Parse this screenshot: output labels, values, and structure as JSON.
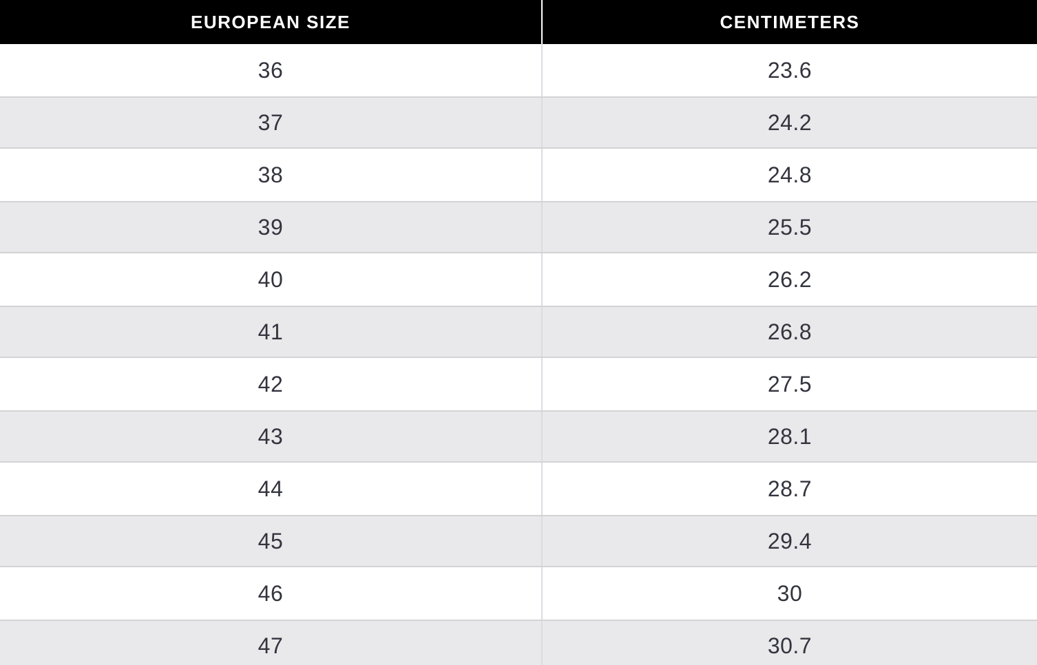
{
  "table": {
    "columns": [
      {
        "label": "EUROPEAN SIZE"
      },
      {
        "label": "CENTIMETERS"
      }
    ],
    "rows": [
      {
        "size": "36",
        "cm": "23.6"
      },
      {
        "size": "37",
        "cm": "24.2"
      },
      {
        "size": "38",
        "cm": "24.8"
      },
      {
        "size": "39",
        "cm": "25.5"
      },
      {
        "size": "40",
        "cm": "26.2"
      },
      {
        "size": "41",
        "cm": "26.8"
      },
      {
        "size": "42",
        "cm": "27.5"
      },
      {
        "size": "43",
        "cm": "28.1"
      },
      {
        "size": "44",
        "cm": "28.7"
      },
      {
        "size": "45",
        "cm": "29.4"
      },
      {
        "size": "46",
        "cm": "30"
      },
      {
        "size": "47",
        "cm": "30.7"
      }
    ]
  },
  "colors": {
    "header_bg": "#000000",
    "header_text": "#ffffff",
    "row_bg": "#ffffff",
    "row_alt_bg": "#e9e8ea",
    "row_border": "#d3d2d6",
    "divider": "#dcdbdf",
    "text": "#33343e"
  },
  "chart_data": {
    "type": "table",
    "columns": [
      "EUROPEAN SIZE",
      "CENTIMETERS"
    ],
    "rows": [
      [
        36,
        23.6
      ],
      [
        37,
        24.2
      ],
      [
        38,
        24.8
      ],
      [
        39,
        25.5
      ],
      [
        40,
        26.2
      ],
      [
        41,
        26.8
      ],
      [
        42,
        27.5
      ],
      [
        43,
        28.1
      ],
      [
        44,
        28.7
      ],
      [
        45,
        29.4
      ],
      [
        46,
        30
      ],
      [
        47,
        30.7
      ]
    ]
  }
}
